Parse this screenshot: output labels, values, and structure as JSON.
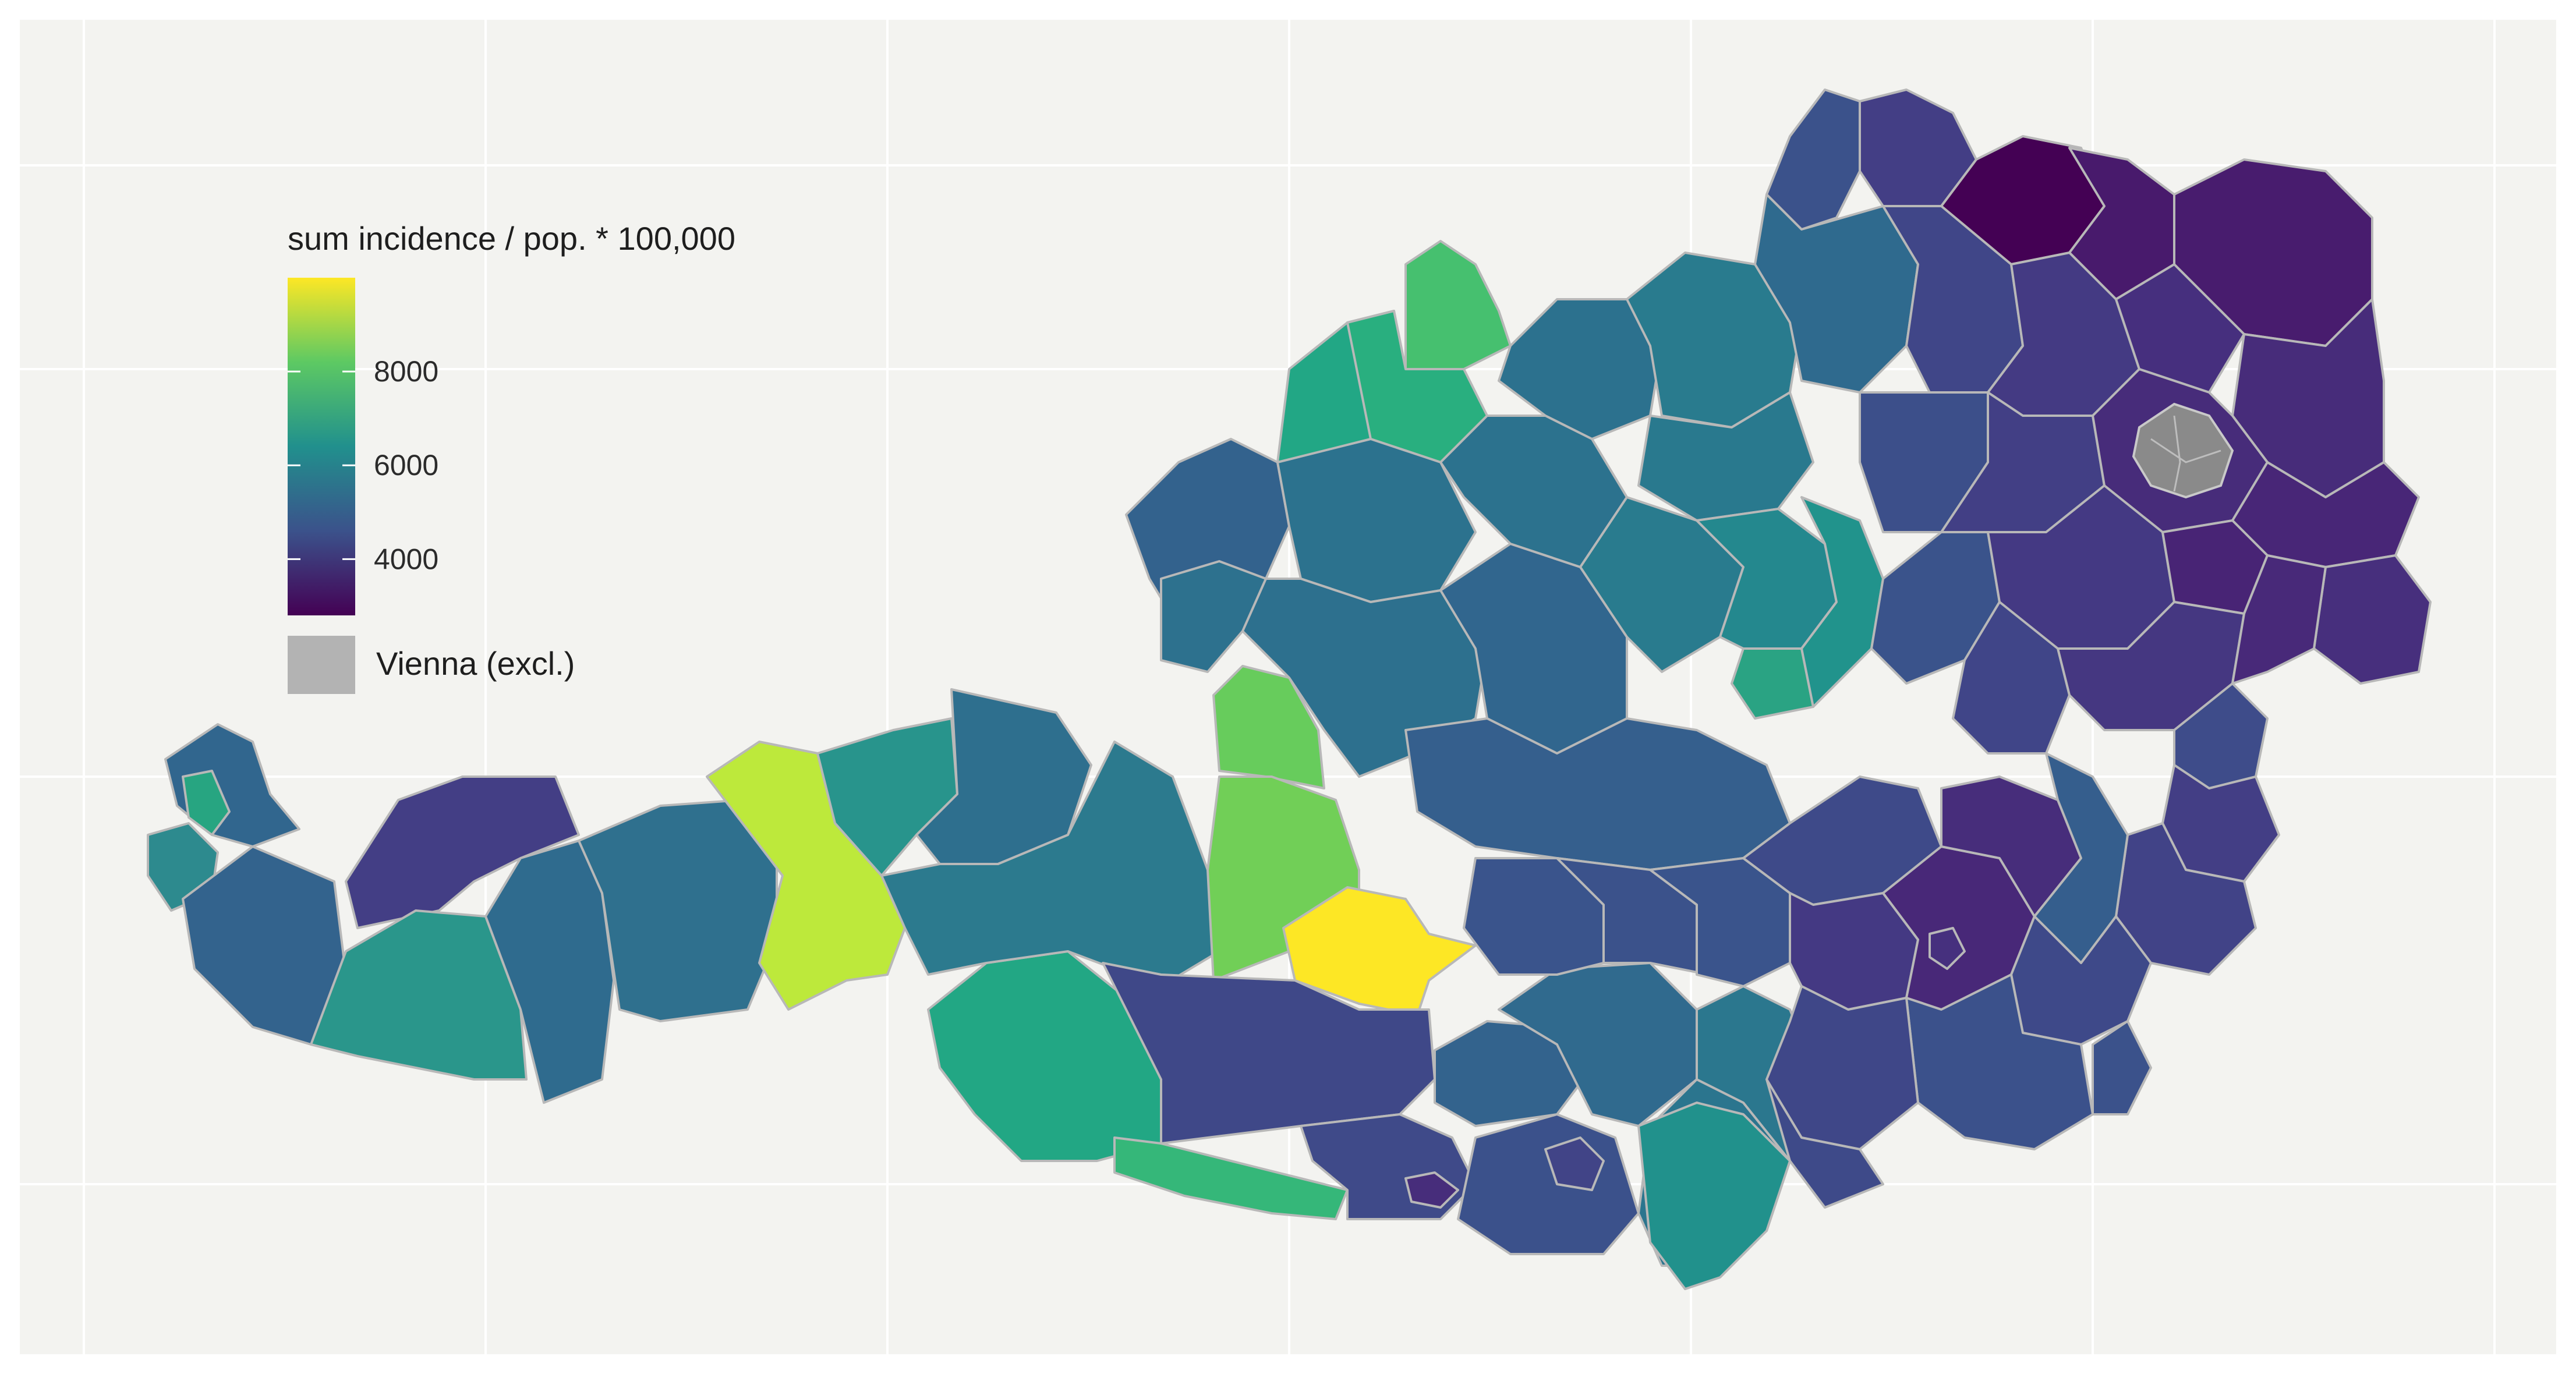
{
  "map": {
    "title": "",
    "region": "Austria districts",
    "legend": {
      "title": "sum incidence / pop. * 100,000",
      "ticks": [
        "4000",
        "6000",
        "8000"
      ],
      "tick_values": [
        4000,
        6000,
        8000
      ],
      "scale_min": 2800,
      "scale_max": 10000,
      "palette": "viridis",
      "colors": [
        "#440154",
        "#3b528b",
        "#21908d",
        "#5dc963",
        "#fde725"
      ],
      "na_label": "Vienna (excl.)",
      "na_color": "#b3b3b3"
    },
    "colors": {
      "background": "#f3f3f0",
      "gridline": "#ffffff",
      "border": "#b8b8b8",
      "vienna": "#8a8a8a"
    }
  }
}
